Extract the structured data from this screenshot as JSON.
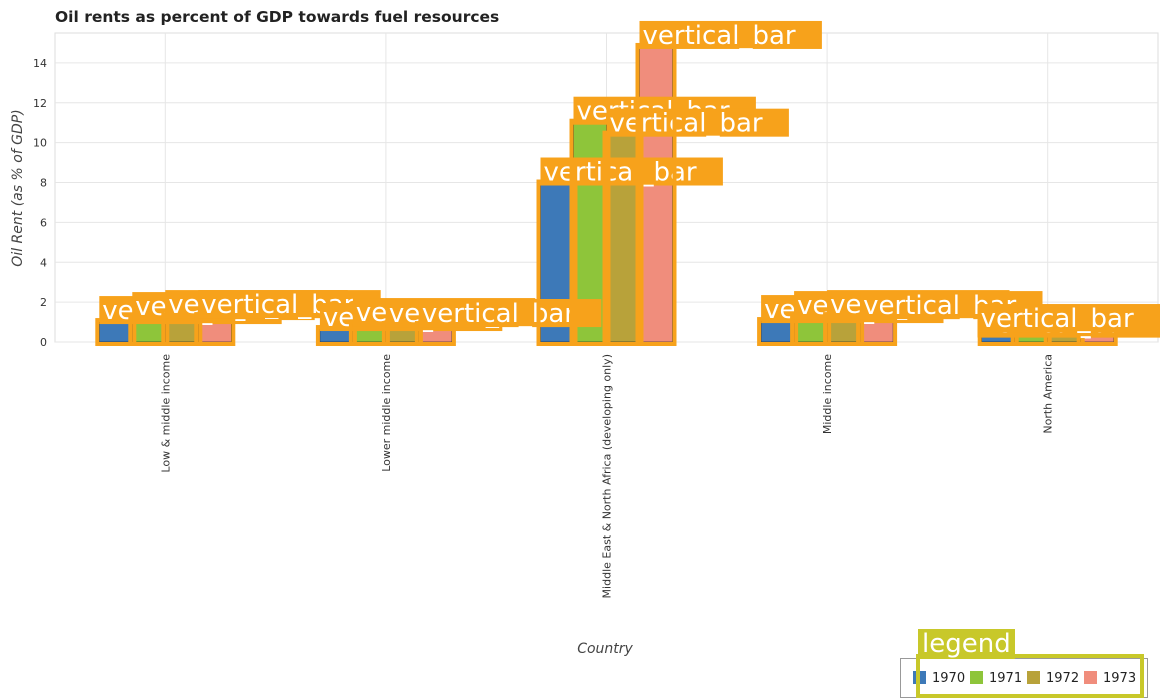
{
  "title": "Oil rents as percent of GDP towards fuel resources",
  "chart_data": {
    "type": "bar",
    "title": "Oil rents as percent of GDP towards fuel resources",
    "xlabel": "Country",
    "ylabel": "Oil Rent (as % of GDP)",
    "ylim": [
      0,
      15.5
    ],
    "yticks": [
      0,
      2,
      4,
      6,
      8,
      10,
      12,
      14
    ],
    "grid": true,
    "legend_position": "bottom-right",
    "categories": [
      "Low & middle income",
      "Lower middle income",
      "Middle East & North Africa (developing only)",
      "Middle income",
      "North America"
    ],
    "series": [
      {
        "name": "1970",
        "color": "#3d79b8",
        "values": [
          1.0,
          0.65,
          7.95,
          1.05,
          0.32
        ]
      },
      {
        "name": "1971",
        "color": "#8ec53a",
        "values": [
          1.2,
          0.9,
          11.0,
          1.25,
          0.4
        ]
      },
      {
        "name": "1972",
        "color": "#b8a23a",
        "values": [
          1.3,
          0.85,
          10.4,
          1.3,
          0.35
        ]
      },
      {
        "name": "1973",
        "color": "#f08d7c",
        "values": [
          1.3,
          0.85,
          14.8,
          1.25,
          0.6
        ]
      }
    ],
    "annotation_label": "vertical_bar",
    "legend_tag": "legend"
  }
}
